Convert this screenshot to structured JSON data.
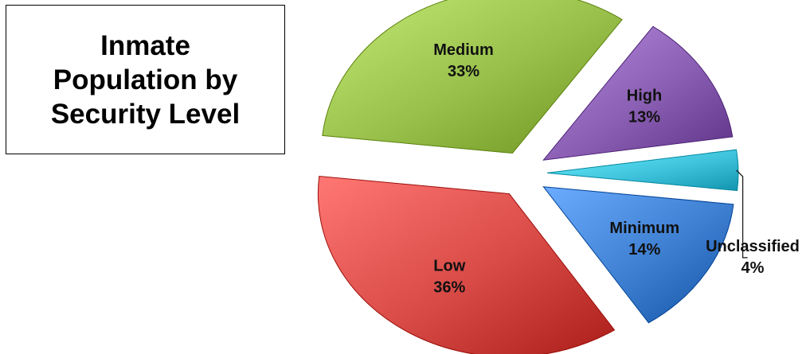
{
  "chart_data": {
    "type": "pie",
    "title": "Inmate Population by Security Level",
    "exploded": true,
    "slices": [
      {
        "label": "High",
        "value": 13,
        "display": "13%",
        "color": "#8a5fb3"
      },
      {
        "label": "Unclassified",
        "value": 4,
        "display": "4%",
        "color": "#3fc3dc"
      },
      {
        "label": "Minimum",
        "value": 14,
        "display": "14%",
        "color": "#3e7fd1"
      },
      {
        "label": "Low",
        "value": 36,
        "display": "36%",
        "color": "#d84a46"
      },
      {
        "label": "Medium",
        "value": 33,
        "display": "33%",
        "color": "#98bf4a"
      }
    ]
  }
}
